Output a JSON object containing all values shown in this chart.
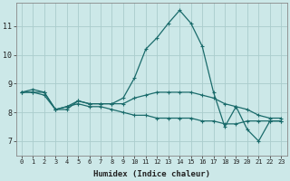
{
  "xlabel": "Humidex (Indice chaleur)",
  "background_color": "#cce8e8",
  "grid_color": "#aacccc",
  "line_color": "#1a6b6b",
  "xlim": [
    -0.5,
    23.5
  ],
  "ylim": [
    6.5,
    11.8
  ],
  "yticks": [
    7,
    8,
    9,
    10,
    11
  ],
  "xticks": [
    0,
    1,
    2,
    3,
    4,
    5,
    6,
    7,
    8,
    9,
    10,
    11,
    12,
    13,
    14,
    15,
    16,
    17,
    18,
    19,
    20,
    21,
    22,
    23
  ],
  "series": [
    [
      8.7,
      8.8,
      8.7,
      8.1,
      8.1,
      8.4,
      8.3,
      8.3,
      8.3,
      8.5,
      9.2,
      10.2,
      10.6,
      11.1,
      11.55,
      11.1,
      10.3,
      8.7,
      7.5,
      8.2,
      7.4,
      7.0,
      7.7,
      7.7
    ],
    [
      8.7,
      8.7,
      8.7,
      8.1,
      8.2,
      8.4,
      8.3,
      8.3,
      8.3,
      8.3,
      8.5,
      8.6,
      8.7,
      8.7,
      8.7,
      8.7,
      8.6,
      8.5,
      8.3,
      8.2,
      8.1,
      7.9,
      7.8,
      7.8
    ],
    [
      8.7,
      8.7,
      8.6,
      8.1,
      8.2,
      8.3,
      8.2,
      8.2,
      8.1,
      8.0,
      7.9,
      7.9,
      7.8,
      7.8,
      7.8,
      7.8,
      7.7,
      7.7,
      7.6,
      7.6,
      7.7,
      7.7,
      7.7,
      7.7
    ]
  ],
  "xlabel_fontsize": 6.5,
  "ylabel_fontsize": 6.5,
  "xtick_fontsize": 5.0,
  "ytick_fontsize": 6.0
}
